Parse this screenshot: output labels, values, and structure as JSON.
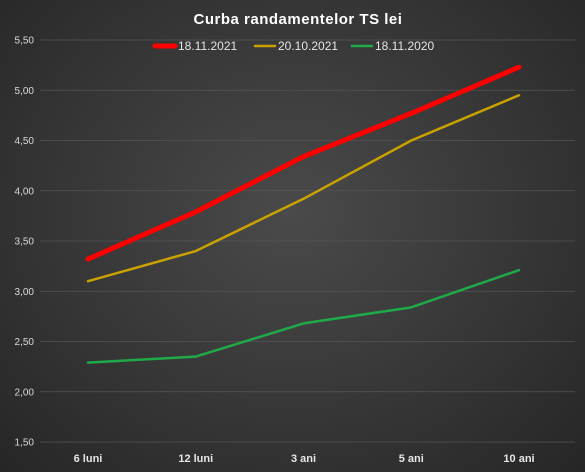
{
  "chart_data": {
    "type": "line",
    "title": "Curba randamentelor TS lei",
    "xlabel": "",
    "ylabel": "",
    "categories": [
      "6 luni",
      "12 luni",
      "3 ani",
      "5 ani",
      "10 ani"
    ],
    "ylim": [
      1.5,
      5.5
    ],
    "yticks": [
      "1,50",
      "2,00",
      "2,50",
      "3,00",
      "3,50",
      "4,00",
      "4,50",
      "5,00",
      "5,50"
    ],
    "grid": true,
    "legend_position": "top",
    "series": [
      {
        "name": "18.11.2021",
        "color": "#ff0000",
        "values": [
          3.32,
          3.79,
          4.34,
          4.77,
          5.23
        ]
      },
      {
        "name": "20.10.2021",
        "color": "#c9a200",
        "values": [
          3.1,
          3.4,
          3.92,
          4.5,
          4.95
        ]
      },
      {
        "name": "18.11.2020",
        "color": "#1faa4a",
        "values": [
          2.29,
          2.35,
          2.68,
          2.84,
          3.21
        ]
      }
    ]
  }
}
